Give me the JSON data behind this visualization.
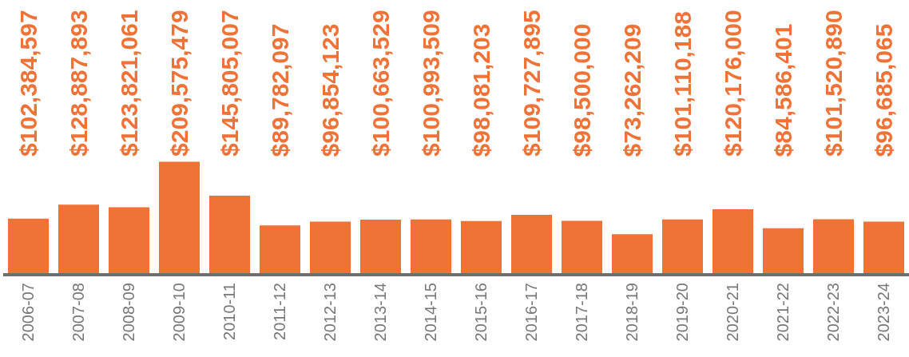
{
  "chart_data": {
    "type": "bar",
    "categories": [
      "2006-07",
      "2007-08",
      "2008-09",
      "2009-10",
      "2010-11",
      "2011-12",
      "2012-13",
      "2013-14",
      "2014-15",
      "2015-16",
      "2016-17",
      "2017-18",
      "2018-19",
      "2019-20",
      "2020-21",
      "2021-22",
      "2022-23",
      "2023-24"
    ],
    "values": [
      102384597,
      128887893,
      123821061,
      209575479,
      145805007,
      89782097,
      96854123,
      100663529,
      100993509,
      98081203,
      109727895,
      98500000,
      73262209,
      101110188,
      120176000,
      84586401,
      101520890,
      96685065
    ],
    "value_labels": [
      "$102,384,597",
      "$128,887,893",
      "$123,821,061",
      "$209,575,479",
      "$145,805,007",
      "$89,782,097",
      "$96,854,123",
      "$100,663,529",
      "$100,993,509",
      "$98,081,203",
      "$109,727,895",
      "$98,500,000",
      "$73,262,209",
      "$101,110,188",
      "$120,176,000",
      "$84,586,401",
      "$101,520,890",
      "$96,685,065"
    ],
    "color": "#f07236"
  }
}
